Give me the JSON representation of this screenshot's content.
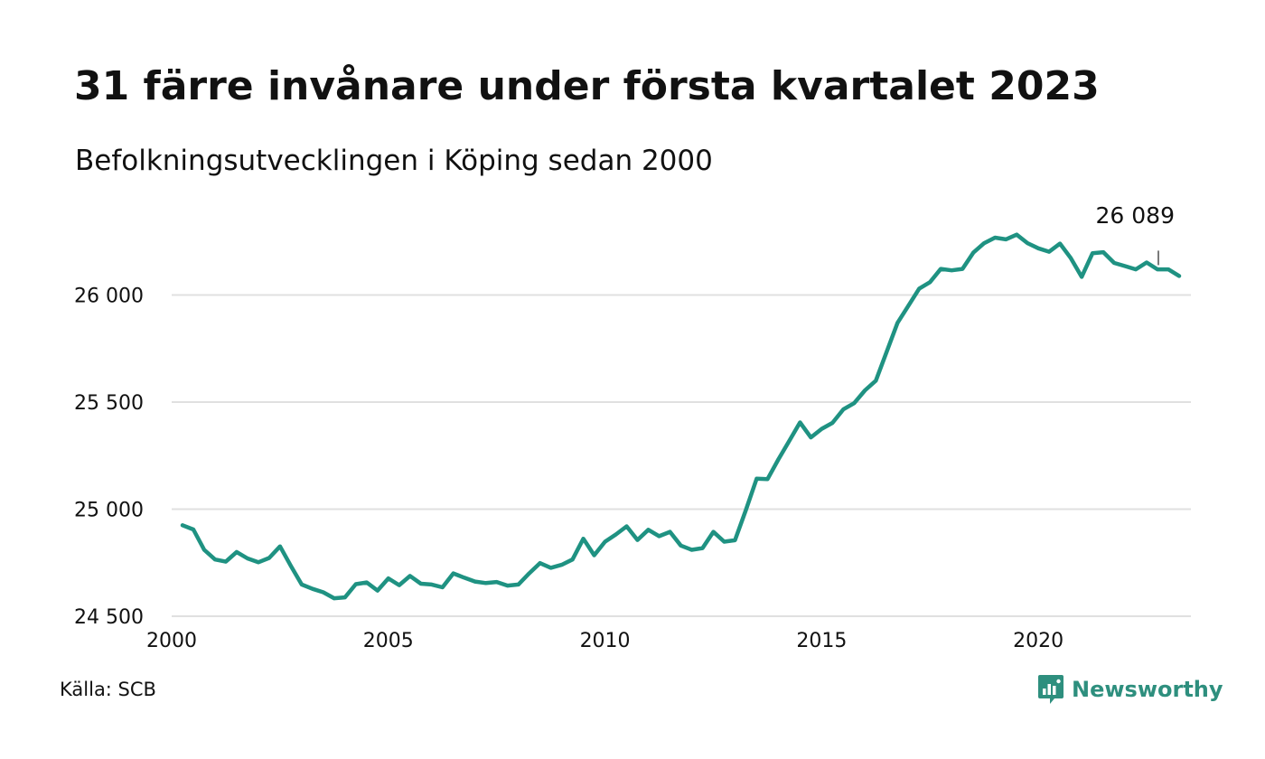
{
  "title": "31 färre invånare under första kvartalet 2023",
  "subtitle": "Befolkningsutvecklingen i Köping sedan 2000",
  "source": "Källa: SCB",
  "logo_text": "Newsworthy",
  "logo_icon": "newsworthy-chart-bubble-icon",
  "colors": {
    "line": "#1f9282",
    "grid": "#e0e0e0",
    "text": "#111111",
    "brand": "#2e8f7e"
  },
  "chart_data": {
    "type": "line",
    "title": "31 färre invånare under första kvartalet 2023",
    "subtitle": "Befolkningsutvecklingen i Köping sedan 2000",
    "xlabel": "",
    "ylabel": "",
    "xlim": [
      2000,
      2024.25
    ],
    "ylim": [
      24500,
      26300
    ],
    "y_ticks": [
      24500,
      25000,
      25500,
      26000
    ],
    "y_tick_labels": [
      "24 500",
      "25 000",
      "25 500",
      "26 000"
    ],
    "x_ticks": [
      2000,
      2005,
      2010,
      2015,
      2020
    ],
    "x_tick_labels": [
      "2000",
      "2005",
      "2010",
      "2015",
      "2020"
    ],
    "grid": "horizontal",
    "end_label": "26 089",
    "series": [
      {
        "x": [
          2000.25,
          2000.5,
          2000.75,
          2001,
          2001.25,
          2001.5,
          2001.75,
          2002,
          2002.25,
          2002.5,
          2002.75,
          2003,
          2003.25,
          2003.5,
          2003.75,
          2004,
          2004.25,
          2004.5,
          2004.75,
          2005,
          2005.25,
          2005.5,
          2005.75,
          2006,
          2006.25,
          2006.5,
          2006.75,
          2007,
          2007.25,
          2007.5,
          2007.75,
          2008,
          2008.25,
          2008.5,
          2008.75,
          2009,
          2009.25,
          2009.5,
          2009.75,
          2010,
          2010.25,
          2010.5,
          2010.75,
          2011,
          2011.25,
          2011.5,
          2011.75,
          2012,
          2012.25,
          2012.5,
          2012.75,
          2013,
          2013.25,
          2013.5,
          2013.75,
          2014,
          2014.25,
          2014.5,
          2014.75,
          2015,
          2015.25,
          2015.5,
          2015.75,
          2016,
          2016.25,
          2016.5,
          2016.75,
          2017,
          2017.25,
          2017.5,
          2017.75,
          2018,
          2018.25,
          2018.5,
          2018.75,
          2019,
          2019.25,
          2019.5,
          2019.75,
          2020,
          2020.25,
          2020.5,
          2020.75,
          2021,
          2021.25,
          2021.5,
          2021.75,
          2022,
          2022.25,
          2022.5,
          2022.75,
          2023,
          2023.25
        ],
        "y": [
          24925,
          24905,
          24810,
          24765,
          24755,
          24800,
          24770,
          24752,
          24772,
          24826,
          24735,
          24648,
          24628,
          24612,
          24584,
          24588,
          24650,
          24658,
          24620,
          24677,
          24645,
          24688,
          24652,
          24648,
          24635,
          24700,
          24680,
          24662,
          24655,
          24660,
          24643,
          24648,
          24700,
          24748,
          24726,
          24740,
          24765,
          24862,
          24785,
          24848,
          24882,
          24920,
          24856,
          24904,
          24874,
          24894,
          24830,
          24810,
          24818,
          24894,
          24848,
          24855,
          24995,
          25142,
          25140,
          25232,
          25318,
          25405,
          25335,
          25375,
          25403,
          25466,
          25495,
          25555,
          25600,
          25735,
          25870,
          25950,
          26030,
          26060,
          26122,
          26115,
          26122,
          26198,
          26242,
          26268,
          26260,
          26282,
          26242,
          26218,
          26202,
          26240,
          26172,
          26085,
          26195,
          26200,
          26150,
          26135,
          26120,
          26152,
          26120,
          26120,
          26089
        ]
      }
    ]
  }
}
